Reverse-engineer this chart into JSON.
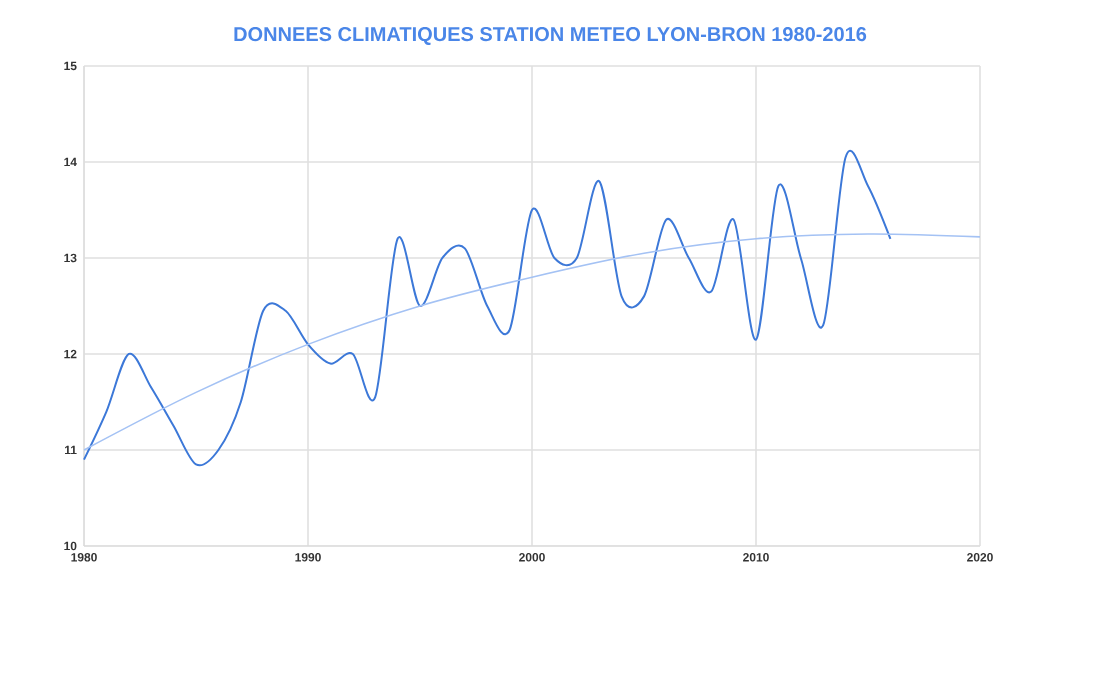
{
  "chart_data": {
    "type": "line",
    "title": "DONNEES CLIMATIQUES STATION METEO LYON-BRON 1980-2016",
    "series": [
      {
        "color": "#3c78d8",
        "x": [
          1980,
          1981,
          1982,
          1983,
          1984,
          1985,
          1986,
          1987,
          1988,
          1989,
          1990,
          1991,
          1992,
          1993,
          1994,
          1995,
          1996,
          1997,
          1998,
          1999,
          2000,
          2001,
          2002,
          2003,
          2004,
          2005,
          2006,
          2007,
          2008,
          2009,
          2010,
          2011,
          2012,
          2013,
          2014,
          2015,
          2016
        ],
        "values": [
          10.9,
          11.4,
          12.0,
          11.65,
          11.25,
          10.85,
          11.0,
          11.5,
          12.45,
          12.45,
          12.1,
          11.9,
          12.0,
          11.55,
          13.2,
          12.5,
          13.0,
          13.1,
          12.5,
          12.25,
          13.5,
          13.0,
          13.0,
          13.8,
          12.6,
          12.6,
          13.4,
          13.0,
          12.65,
          13.4,
          12.15,
          13.75,
          13.0,
          12.3,
          14.05,
          13.75,
          13.2
        ]
      },
      {
        "color": "#a4c2f4",
        "x": [
          1980,
          1985,
          1990,
          1995,
          2000,
          2005,
          2010,
          2015,
          2020
        ],
        "values": [
          11.0,
          11.6,
          12.1,
          12.5,
          12.8,
          13.05,
          13.2,
          13.25,
          13.22
        ]
      }
    ],
    "xlim": [
      1980,
      2020
    ],
    "ylim": [
      10,
      15
    ],
    "xticks": [
      1980,
      1990,
      2000,
      2010,
      2020
    ],
    "yticks": [
      10,
      11,
      12,
      13,
      14,
      15
    ],
    "grid": true,
    "marker": "none",
    "line_style": "solid"
  }
}
